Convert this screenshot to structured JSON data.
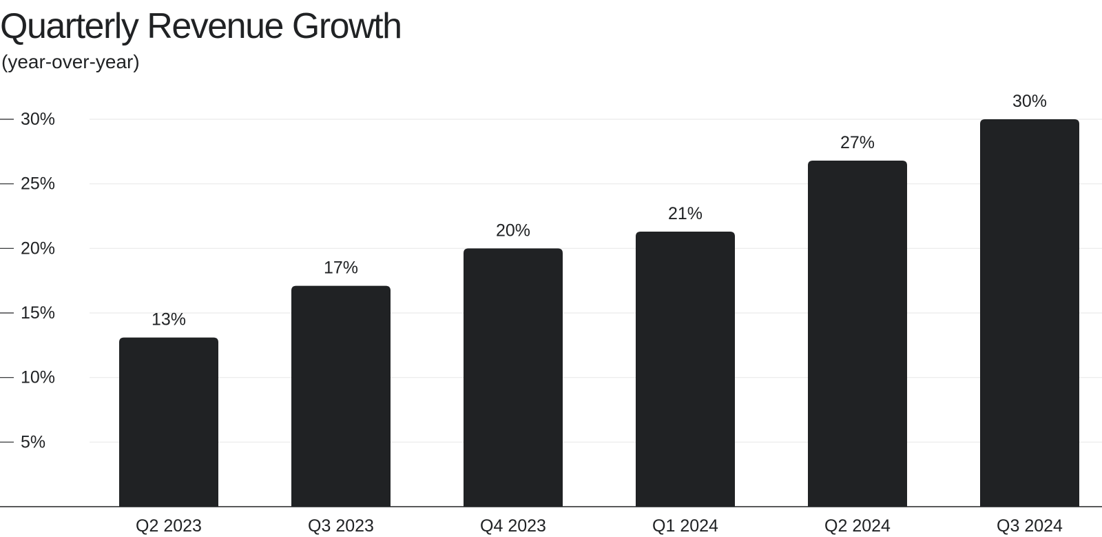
{
  "chart_data": {
    "type": "bar",
    "title": "Quarterly Revenue Growth",
    "subtitle": "(year-over-year)",
    "xlabel": "",
    "ylabel": "",
    "categories": [
      "Q2 2023",
      "Q3 2023",
      "Q4 2023",
      "Q1 2024",
      "Q2 2024",
      "Q3 2024"
    ],
    "values": [
      13.1,
      17.1,
      20.0,
      21.3,
      26.8,
      30.0
    ],
    "data_labels": [
      "13%",
      "17%",
      "20%",
      "21%",
      "27%",
      "30%"
    ],
    "ylim": [
      0,
      30
    ],
    "yticks": [
      5,
      10,
      15,
      20,
      25,
      30
    ],
    "ytick_labels": [
      "5%",
      "10%",
      "15%",
      "20%",
      "25%",
      "30%"
    ],
    "grid": true,
    "legend": "none",
    "colors": {
      "bar": "#202224",
      "grid": "#e9e9e9",
      "axis": "#202224",
      "text": "#202224"
    }
  }
}
